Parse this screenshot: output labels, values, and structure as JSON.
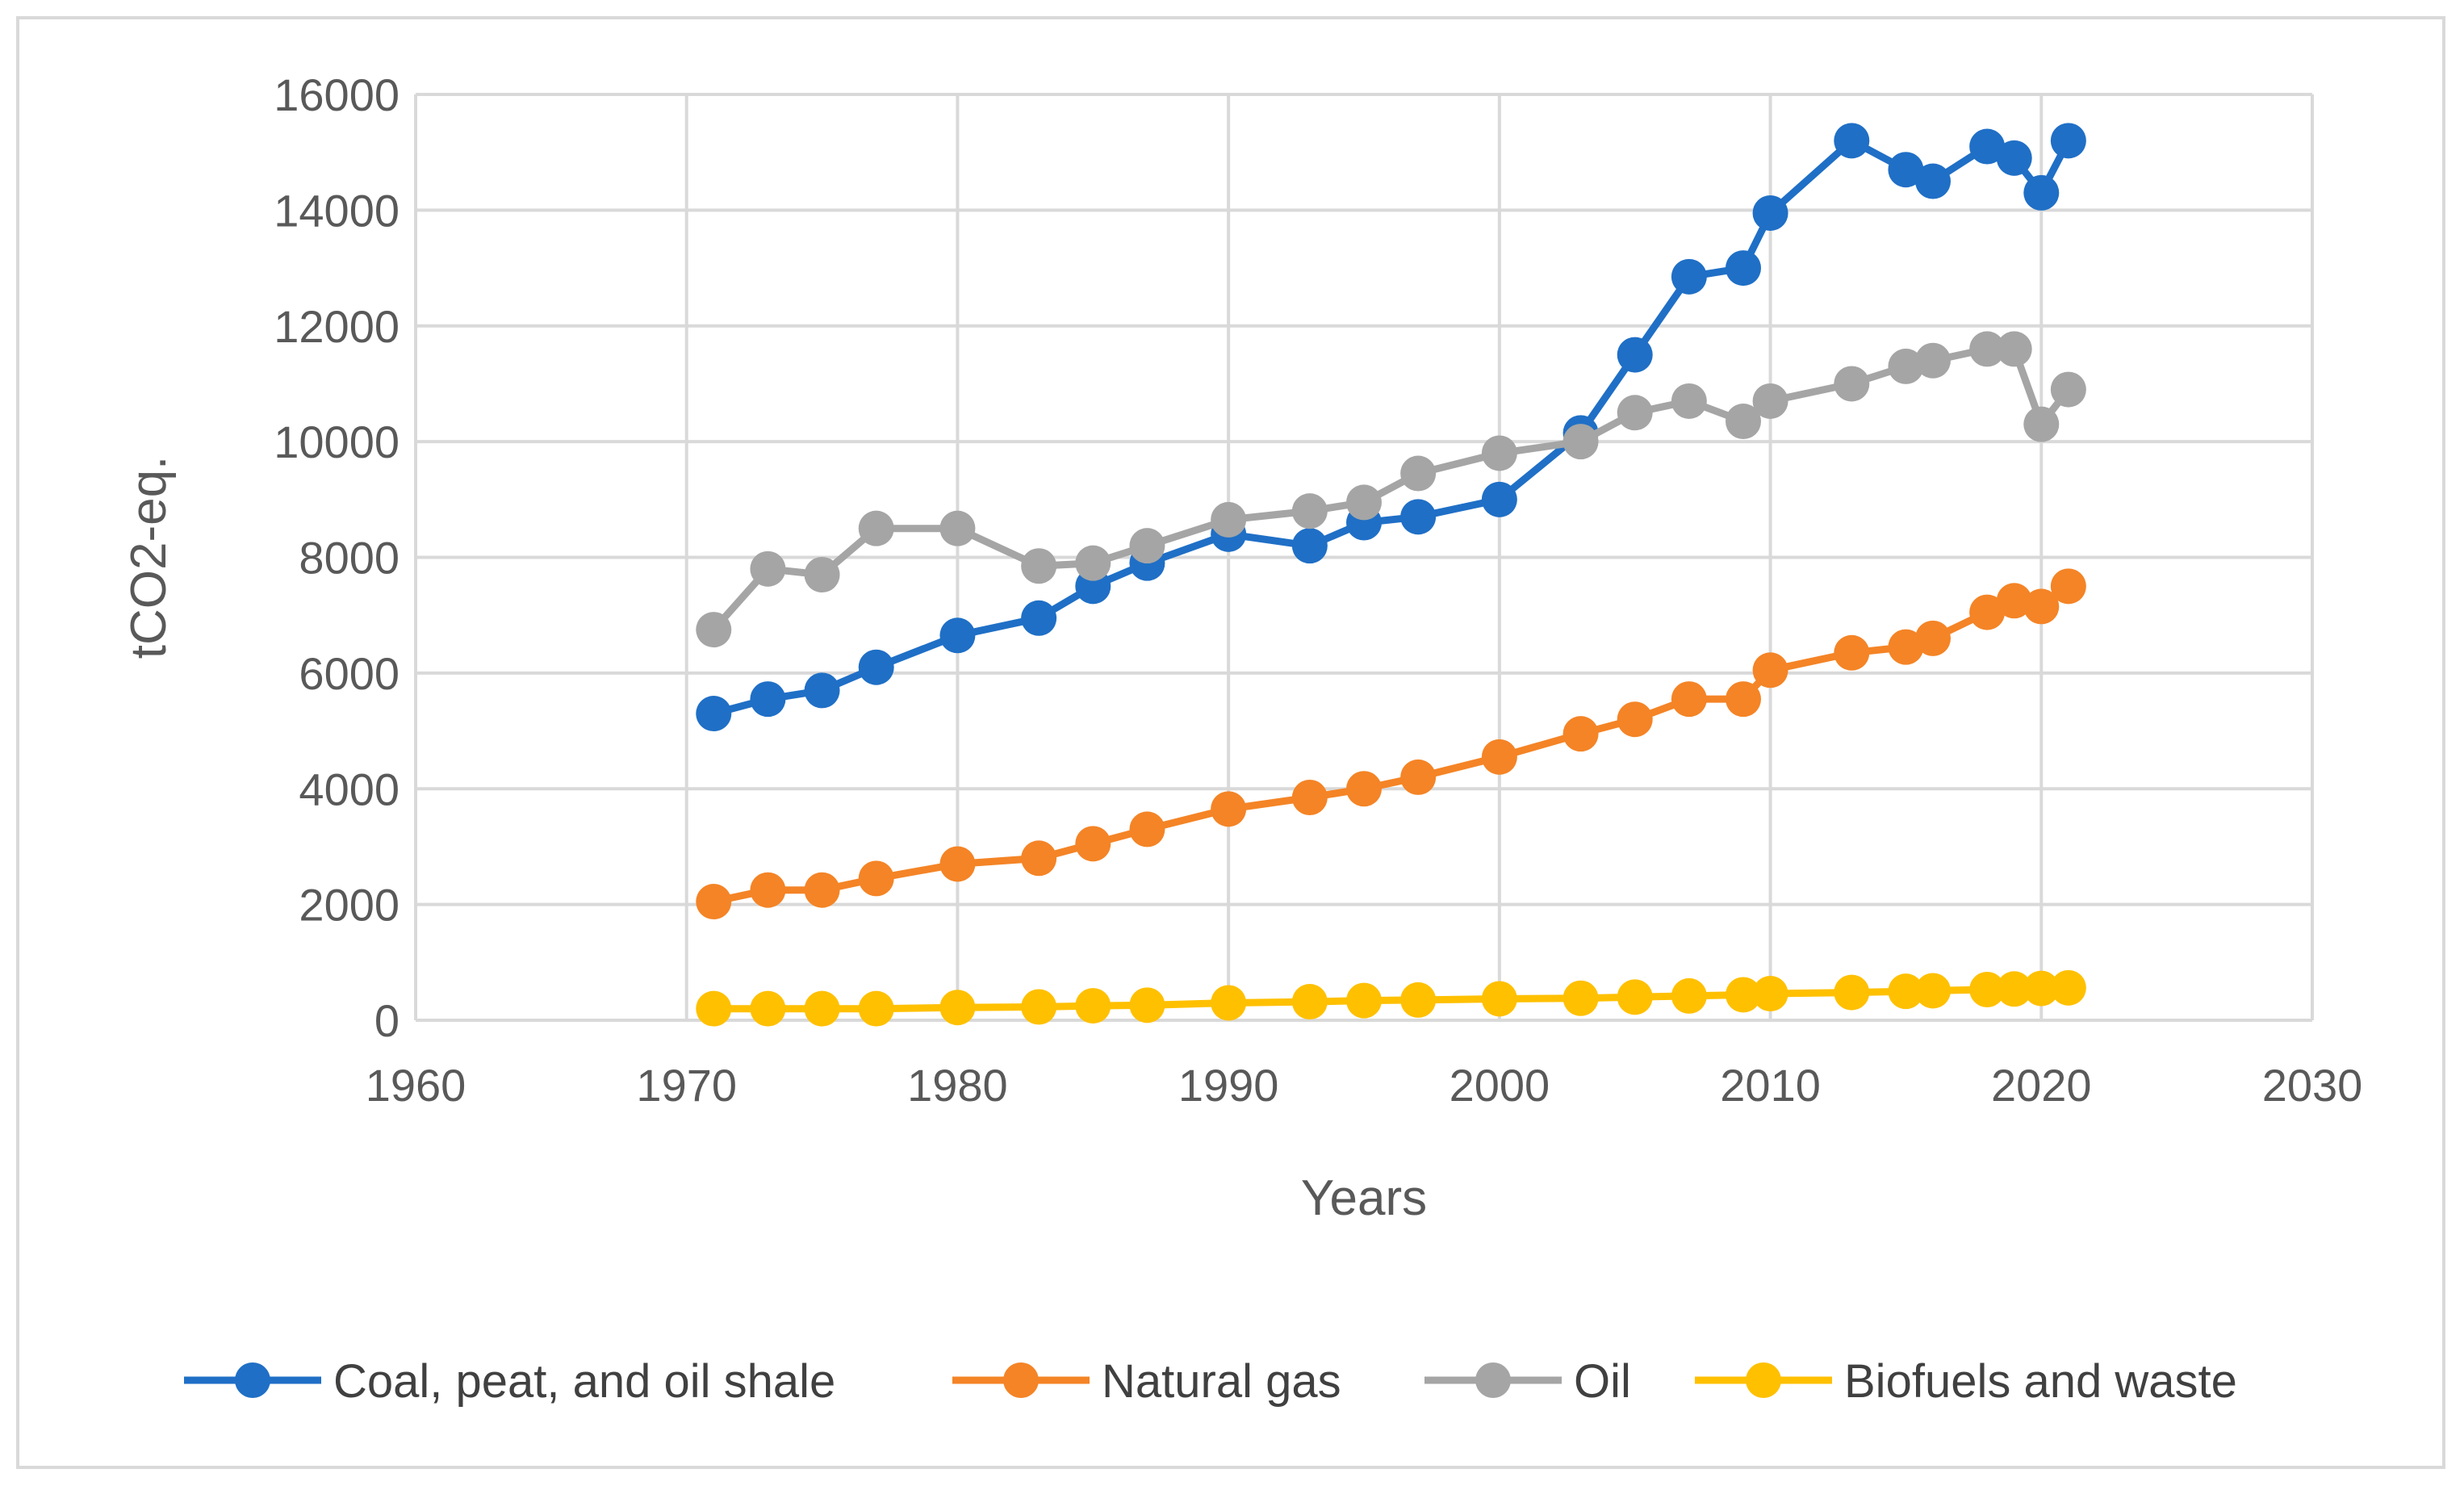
{
  "chart_data": {
    "type": "line",
    "title": "",
    "xlabel": "Years",
    "ylabel": "tCO2-eq.",
    "xlim": [
      1960,
      2030
    ],
    "ylim": [
      0,
      16000
    ],
    "x_ticks": [
      1960,
      1970,
      1980,
      1990,
      2000,
      2010,
      2020,
      2030
    ],
    "y_ticks": [
      0,
      2000,
      4000,
      6000,
      8000,
      10000,
      12000,
      14000,
      16000
    ],
    "grid": true,
    "legend_position": "bottom",
    "x": [
      1971,
      1973,
      1975,
      1977,
      1980,
      1983,
      1985,
      1987,
      1990,
      1993,
      1995,
      1997,
      2000,
      2003,
      2005,
      2007,
      2009,
      2010,
      2013,
      2015,
      2016,
      2018,
      2019,
      2020,
      2021
    ],
    "series": [
      {
        "name": "Coal, peat, and oil shale",
        "color": "#1f6fc6",
        "values": [
          5300,
          5550,
          5700,
          6100,
          6650,
          6950,
          7500,
          7900,
          8400,
          8200,
          8600,
          8700,
          9000,
          10150,
          11500,
          12850,
          13000,
          13950,
          15200,
          14700,
          14500,
          15100,
          14900,
          14300,
          15200
        ]
      },
      {
        "name": "Natural gas",
        "color": "#f48426",
        "values": [
          2050,
          2250,
          2250,
          2450,
          2700,
          2800,
          3050,
          3300,
          3650,
          3850,
          4000,
          4200,
          4550,
          4950,
          5200,
          5550,
          5550,
          6050,
          6350,
          6450,
          6600,
          7050,
          7250,
          7150,
          7500
        ]
      },
      {
        "name": "Oil",
        "color": "#a5a5a5",
        "values": [
          6750,
          7800,
          7700,
          8500,
          8500,
          7850,
          7900,
          8200,
          8650,
          8800,
          8950,
          9450,
          9800,
          10000,
          10500,
          10700,
          10350,
          10700,
          11000,
          11300,
          11400,
          11600,
          11600,
          10300,
          10900
        ]
      },
      {
        "name": "Biofuels and waste",
        "color": "#ffc000",
        "values": [
          200,
          200,
          200,
          200,
          220,
          230,
          250,
          260,
          300,
          320,
          340,
          350,
          370,
          380,
          400,
          420,
          440,
          460,
          480,
          500,
          510,
          530,
          540,
          550,
          560
        ]
      }
    ]
  }
}
